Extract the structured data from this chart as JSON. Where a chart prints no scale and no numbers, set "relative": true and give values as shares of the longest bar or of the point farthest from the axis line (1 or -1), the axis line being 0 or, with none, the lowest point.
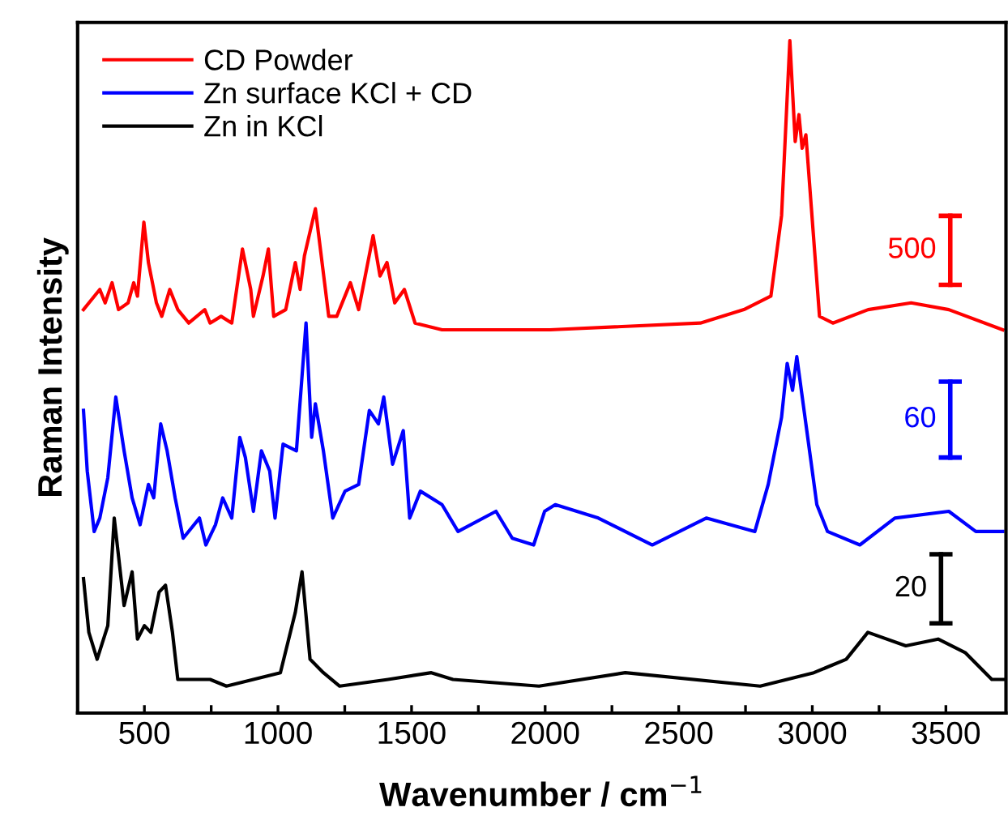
{
  "chart_data": {
    "type": "line",
    "relative": true,
    "xlabel": "Wavenumber / cm$^{−1}$",
    "ylabel": "Raman Intensity",
    "legend": "top left",
    "grid": false,
    "line_style": "solid",
    "marker": "none",
    "tick_labels": "x",
    "xlim": [
      250,
      3725
    ],
    "xticks": [
      500,
      {
        "value": 750,
        "label": null
      },
      1000,
      {
        "value": 1250,
        "label": null
      },
      1500,
      {
        "value": 1750,
        "label": null
      },
      2000,
      {
        "value": 2250,
        "label": null
      },
      2500,
      {
        "value": 2750,
        "label": null
      },
      3000,
      {
        "value": 3250,
        "label": null
      },
      3500
    ],
    "annotations": [
      "500",
      "60",
      "20"
    ],
    "series": [
      {
        "name": "CD Powder",
        "color": "#ff0000",
        "x": [
          272,
          333,
          353,
          379,
          403,
          439,
          460,
          474,
          498,
          515,
          545,
          565,
          595,
          625,
          666,
          726,
          746,
          787,
          827,
          867,
          898,
          908,
          944,
          964,
          984,
          1029,
          1065,
          1083,
          1099,
          1140,
          1190,
          1220,
          1271,
          1302,
          1356,
          1382,
          1408,
          1437,
          1473,
          1513,
          1614,
          2018,
          2581,
          2744,
          2845,
          2885,
          2916,
          2936,
          2950,
          2962,
          2976,
          3027,
          3077,
          3209,
          3370,
          3511,
          3713
        ],
        "values": [
          0.6,
          0.63,
          0.61,
          0.64,
          0.6,
          0.61,
          0.64,
          0.62,
          0.73,
          0.67,
          0.61,
          0.59,
          0.63,
          0.6,
          0.58,
          0.6,
          0.58,
          0.59,
          0.58,
          0.69,
          0.63,
          0.59,
          0.65,
          0.69,
          0.59,
          0.6,
          0.67,
          0.63,
          0.68,
          0.75,
          0.59,
          0.59,
          0.64,
          0.6,
          0.71,
          0.65,
          0.67,
          0.61,
          0.63,
          0.58,
          0.57,
          0.57,
          0.58,
          0.6,
          0.62,
          0.74,
          1.0,
          0.85,
          0.89,
          0.84,
          0.86,
          0.59,
          0.58,
          0.6,
          0.61,
          0.6,
          0.57
        ]
      },
      {
        "name": "Zn surface KCl + CD",
        "color": "#0000ff",
        "x": [
          272,
          286,
          312,
          333,
          363,
          393,
          424,
          454,
          484,
          515,
          535,
          561,
          585,
          615,
          645,
          706,
          730,
          766,
          793,
          827,
          857,
          878,
          908,
          938,
          969,
          989,
          1019,
          1069,
          1105,
          1126,
          1140,
          1170,
          1205,
          1251,
          1302,
          1342,
          1376,
          1396,
          1429,
          1469,
          1493,
          1533,
          1614,
          1674,
          1816,
          1877,
          1957,
          1998,
          2038,
          2199,
          2401,
          2603,
          2785,
          2835,
          2885,
          2906,
          2926,
          2942,
          2976,
          3017,
          3057,
          3178,
          3309,
          3511,
          3612,
          3713
        ],
        "values": [
          0.45,
          0.36,
          0.27,
          0.29,
          0.35,
          0.47,
          0.39,
          0.32,
          0.28,
          0.34,
          0.32,
          0.43,
          0.39,
          0.32,
          0.26,
          0.29,
          0.25,
          0.28,
          0.32,
          0.29,
          0.41,
          0.38,
          0.3,
          0.39,
          0.36,
          0.29,
          0.4,
          0.39,
          0.58,
          0.41,
          0.46,
          0.39,
          0.29,
          0.33,
          0.34,
          0.45,
          0.43,
          0.47,
          0.37,
          0.42,
          0.29,
          0.33,
          0.31,
          0.27,
          0.3,
          0.26,
          0.25,
          0.3,
          0.31,
          0.29,
          0.25,
          0.29,
          0.27,
          0.34,
          0.44,
          0.52,
          0.48,
          0.53,
          0.43,
          0.31,
          0.27,
          0.25,
          0.29,
          0.3,
          0.27,
          0.27
        ]
      },
      {
        "name": "Zn in KCl",
        "color": "#000000",
        "x": [
          272,
          292,
          323,
          363,
          387,
          424,
          454,
          474,
          500,
          524,
          555,
          579,
          605,
          625,
          746,
          807,
          1009,
          1065,
          1090,
          1120,
          1170,
          1231,
          1412,
          1574,
          1655,
          1977,
          2300,
          2805,
          3006,
          3127,
          3208,
          3350,
          3471,
          3572,
          3672,
          3723
        ],
        "values": [
          0.2,
          0.12,
          0.08,
          0.13,
          0.29,
          0.16,
          0.21,
          0.11,
          0.13,
          0.12,
          0.18,
          0.19,
          0.12,
          0.05,
          0.05,
          0.04,
          0.06,
          0.15,
          0.21,
          0.08,
          0.06,
          0.04,
          0.05,
          0.06,
          0.05,
          0.04,
          0.06,
          0.04,
          0.06,
          0.08,
          0.12,
          0.1,
          0.11,
          0.09,
          0.05,
          0.05
        ]
      }
    ]
  }
}
